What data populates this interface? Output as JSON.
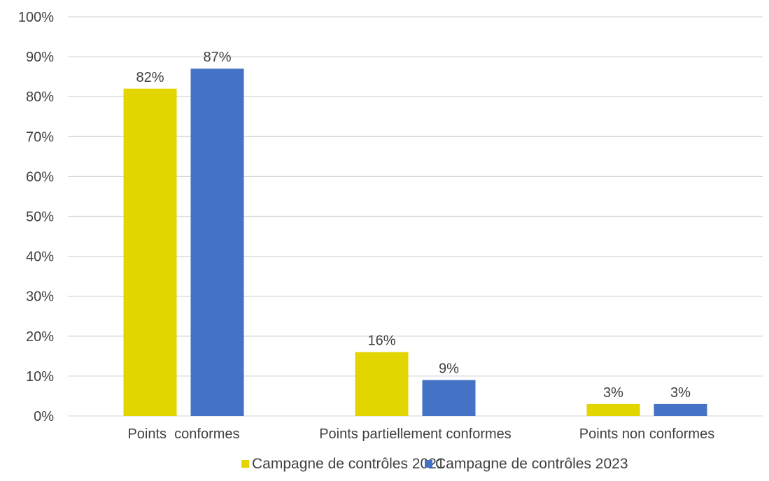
{
  "chart_data": {
    "type": "bar",
    "title": "",
    "xlabel": "",
    "ylabel": "",
    "categories": [
      "Points  conformes",
      "Points partiellement conformes",
      "Points non conformes"
    ],
    "series": [
      {
        "name": "Campagne de contrôles 2021",
        "values": [
          82,
          16,
          3
        ],
        "labels": [
          "82%",
          "16%",
          "3%"
        ],
        "color": "#e2d500"
      },
      {
        "name": "Campagne de contrôles 2023",
        "values": [
          87,
          9,
          3
        ],
        "labels": [
          "87%",
          "9%",
          "3%"
        ],
        "color": "#4472c4"
      }
    ],
    "ylim": [
      0,
      100
    ],
    "yticks": [
      0,
      10,
      20,
      30,
      40,
      50,
      60,
      70,
      80,
      90,
      100
    ],
    "ytick_labels": [
      "0%",
      "10%",
      "20%",
      "30%",
      "40%",
      "50%",
      "60%",
      "70%",
      "80%",
      "90%",
      "100%"
    ],
    "grid": true,
    "legend_position": "bottom"
  }
}
